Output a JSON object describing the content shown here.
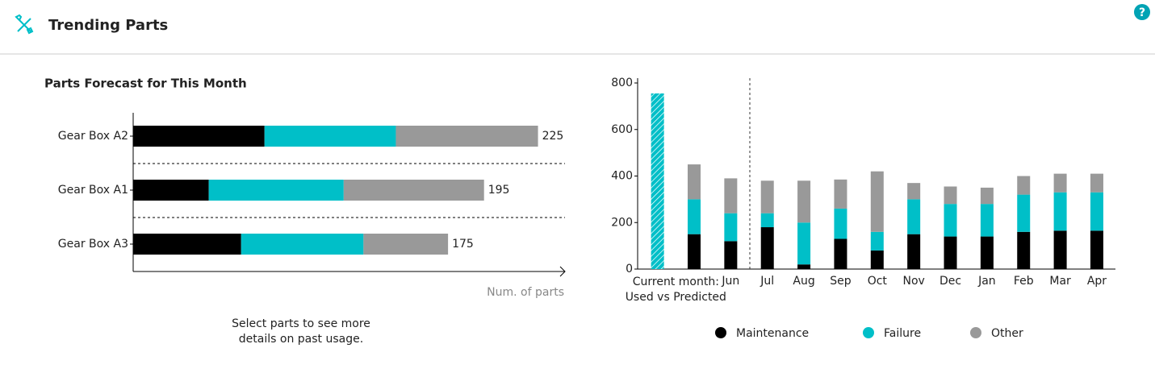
{
  "header": {
    "title": "Trending Parts"
  },
  "note": "Select parts to see more details on past usage.",
  "chart_data": [
    {
      "type": "hbar_stacked",
      "title": "Parts Forecast for This Month",
      "categories": [
        "Gear Box A2",
        "Gear Box A1",
        "Gear Box A3"
      ],
      "series": [
        {
          "name": "Maintenance",
          "color": "#000000",
          "values": [
            73,
            42,
            60
          ]
        },
        {
          "name": "Failure",
          "color": "#00bfc8",
          "values": [
            73,
            75,
            68
          ]
        },
        {
          "name": "Other",
          "color": "#999999",
          "values": [
            79,
            78,
            47
          ]
        }
      ],
      "totals": [
        225,
        195,
        175
      ],
      "xlabel": "Num. of parts",
      "xlim": [
        0,
        240
      ]
    },
    {
      "type": "bar_stacked",
      "categories": [
        "Current month: Used vs Predicted",
        "Jun",
        "Jul",
        "Aug",
        "Sep",
        "Oct",
        "Nov",
        "Dec",
        "Jan",
        "Feb",
        "Mar",
        "Apr"
      ],
      "used": {
        "value": 755,
        "color": "#00bfc8"
      },
      "series": [
        {
          "name": "Maintenance",
          "color": "#000000",
          "values": [
            150,
            120,
            180,
            20,
            130,
            80,
            150,
            140,
            140,
            160,
            165,
            165
          ]
        },
        {
          "name": "Failure",
          "color": "#00bfc8",
          "values": [
            150,
            120,
            60,
            180,
            130,
            80,
            150,
            140,
            140,
            160,
            165,
            165
          ]
        },
        {
          "name": "Other",
          "color": "#999999",
          "values": [
            150,
            150,
            140,
            180,
            125,
            260,
            70,
            75,
            70,
            80,
            80,
            80
          ]
        }
      ],
      "ylim": [
        0,
        800
      ],
      "yticks": [
        0,
        200,
        400,
        600,
        800
      ]
    }
  ]
}
